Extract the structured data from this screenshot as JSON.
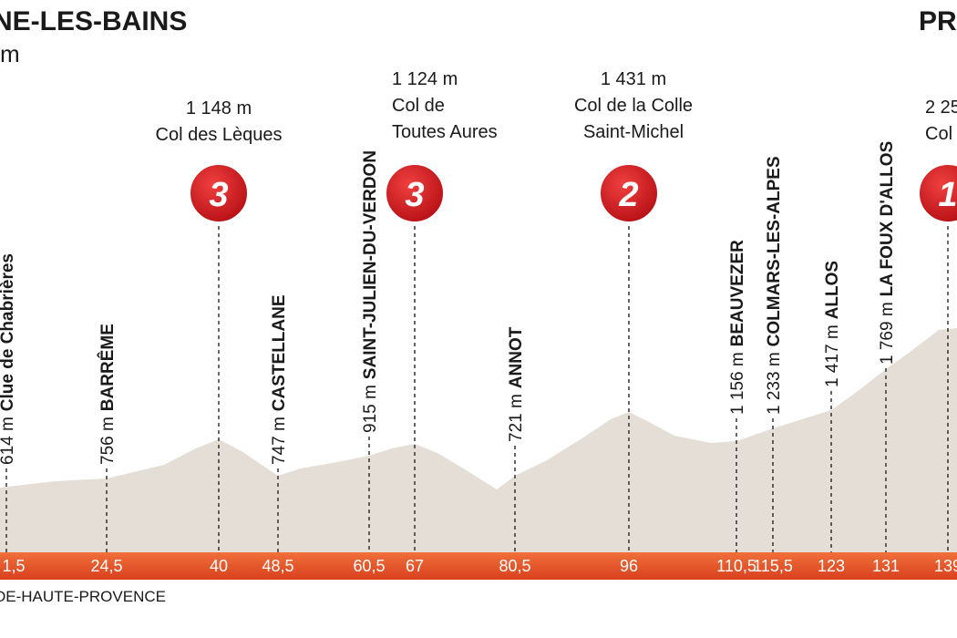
{
  "header": {
    "start_town": "NE-LES-BAINS",
    "start_altitude": "m",
    "finish_town": "PR"
  },
  "climbs": [
    {
      "altitude": "1 148 m",
      "name_lines": [
        "Col des Lèques"
      ],
      "category": "3"
    },
    {
      "altitude": "1 124 m",
      "name_lines": [
        "Col de",
        "Toutes Aures"
      ],
      "category": "3"
    },
    {
      "altitude": "1 431 m",
      "name_lines": [
        "Col de la Colle",
        "Saint-Michel"
      ],
      "category": "2"
    },
    {
      "altitude": "2 25",
      "name_lines": [
        "Col"
      ],
      "category": "1"
    }
  ],
  "places": [
    {
      "altitude": "614 m",
      "name": "Clue de Chabrières"
    },
    {
      "altitude": "756 m",
      "name": "BARRÊME"
    },
    {
      "altitude": "747 m",
      "name": "CASTELLANE"
    },
    {
      "altitude": "915 m",
      "name": "SAINT-JULIEN-DU-VERDON"
    },
    {
      "altitude": "721 m",
      "name": "ANNOT"
    },
    {
      "altitude": "1 156 m",
      "name": "BEAUVEZER"
    },
    {
      "altitude": "1 233 m",
      "name": "COLMARS-LES-ALPES"
    },
    {
      "altitude": "1 417 m",
      "name": "ALLOS"
    },
    {
      "altitude": "1 769 m",
      "name": "LA FOUX D'ALLOS"
    }
  ],
  "distances": [
    "1,5",
    "24,5",
    "40",
    "48,5",
    "60,5",
    "67",
    "80,5",
    "96",
    "110,5",
    "115,5",
    "123",
    "131",
    "139"
  ],
  "department": "DE-HAUTE-PROVENCE"
}
